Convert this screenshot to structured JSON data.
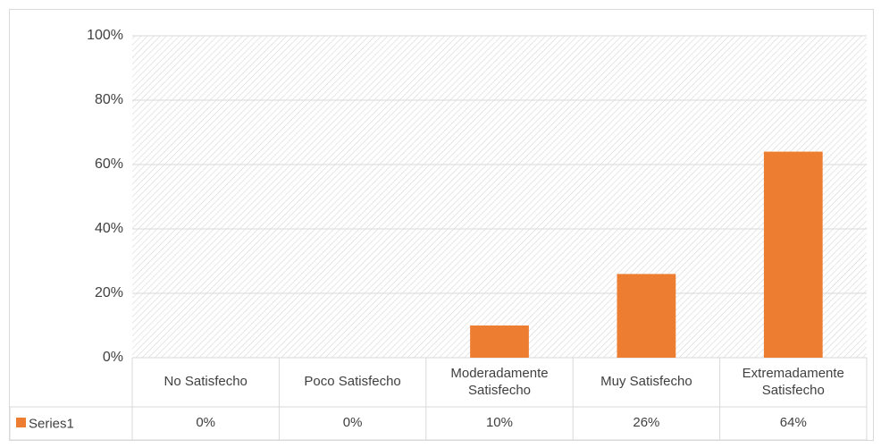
{
  "chart_data": {
    "type": "bar",
    "categories": [
      "No Satisfecho",
      "Poco Satisfecho",
      "Moderadamente Satisfecho",
      "Muy Satisfecho",
      "Extremadamente Satisfecho"
    ],
    "series": [
      {
        "name": "Series1",
        "color": "#ed7d31",
        "values": [
          0,
          0,
          10,
          26,
          64
        ],
        "value_labels": [
          "0%",
          "0%",
          "10%",
          "26%",
          "64%"
        ]
      }
    ],
    "ylim": [
      0,
      100
    ],
    "yticks": [
      {
        "value": 0,
        "label": "0%"
      },
      {
        "value": 20,
        "label": "20%"
      },
      {
        "value": 40,
        "label": "40%"
      },
      {
        "value": 60,
        "label": "60%"
      },
      {
        "value": 80,
        "label": "80%"
      },
      {
        "value": 100,
        "label": "100%"
      }
    ],
    "grid": true
  }
}
